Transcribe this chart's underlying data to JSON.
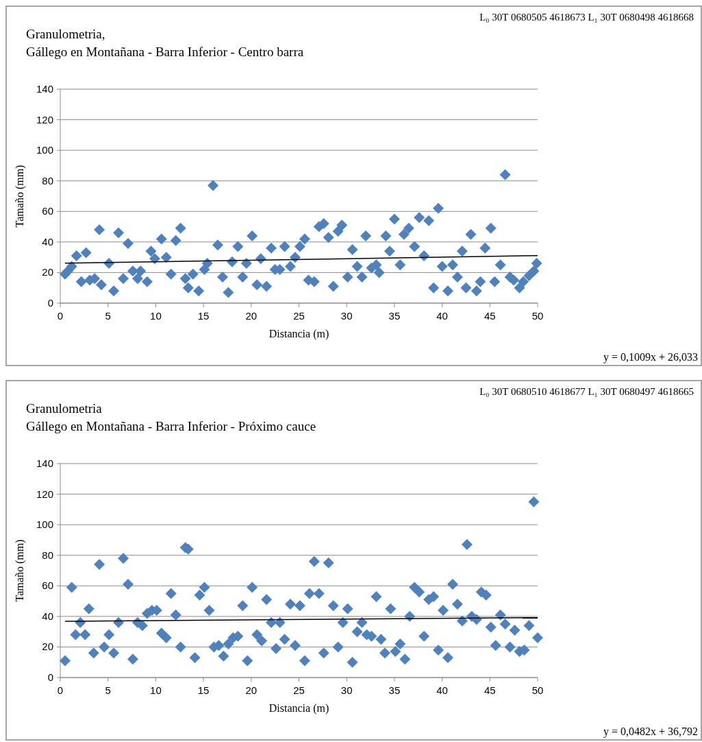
{
  "chart_data": [
    {
      "type": "scatter",
      "title": "Granulometria,",
      "subtitle": "Gállego en Montañana - Barra Inferior - Centro barra",
      "xlabel": "Distancia (m)",
      "ylabel": "Tamaño (mm)",
      "annotations": [
        "L₀ 30T 0680505  4618673   L₁ 30T 0680498  4618668",
        "y = 0,1009x + 26,033"
      ],
      "xlim": [
        0,
        50
      ],
      "xticks": [
        0,
        5,
        10,
        15,
        20,
        25,
        30,
        35,
        40,
        45,
        50
      ],
      "ylim": [
        0,
        140
      ],
      "yticks": [
        0,
        20,
        40,
        60,
        80,
        100,
        120,
        140
      ],
      "grid": "y",
      "series": [
        {
          "marker": "diamond",
          "color": "#4f81bd",
          "x": [
            0.5,
            0.8,
            1.2,
            1.7,
            2.2,
            2.7,
            3.1,
            3.6,
            4.1,
            4.3,
            5.1,
            5.6,
            6.1,
            6.6,
            7.1,
            7.6,
            8.1,
            8.4,
            9.1,
            9.5,
            9.9,
            10.6,
            11.1,
            11.6,
            12.1,
            12.6,
            13.1,
            13.4,
            13.9,
            14.5,
            15.1,
            15.4,
            16.0,
            16.5,
            17.0,
            17.6,
            18.0,
            18.6,
            19.1,
            19.5,
            20.1,
            20.6,
            21.0,
            21.6,
            22.1,
            22.5,
            23.0,
            23.5,
            24.1,
            24.6,
            25.1,
            25.6,
            26.0,
            26.6,
            27.1,
            27.6,
            28.1,
            28.6,
            29.1,
            29.5,
            30.1,
            30.6,
            31.1,
            31.6,
            32.0,
            32.6,
            33.1,
            33.4,
            34.1,
            34.5,
            35.0,
            35.6,
            36.0,
            36.5,
            37.1,
            37.6,
            38.1,
            38.6,
            39.1,
            39.6,
            40.0,
            40.6,
            41.1,
            41.6,
            42.1,
            42.5,
            43.0,
            43.6,
            44.0,
            44.5,
            45.1,
            45.5,
            46.1,
            46.6,
            47.1,
            47.5,
            48.1,
            48.5,
            49.1,
            49.6,
            49.9
          ],
          "values": [
            19,
            21,
            24,
            31,
            14,
            33,
            15,
            16,
            48,
            12,
            26,
            8,
            46,
            16,
            39,
            21,
            16,
            21,
            14,
            34,
            29,
            42,
            30,
            19,
            41,
            49,
            16,
            10,
            19,
            8,
            22,
            26,
            77,
            38,
            17,
            7,
            27,
            37,
            17,
            26,
            44,
            12,
            29,
            11,
            36,
            22,
            22,
            37,
            24,
            30,
            37,
            42,
            15,
            14,
            50,
            52,
            43,
            11,
            47,
            51,
            17,
            35,
            24,
            17,
            44,
            23,
            25,
            20,
            44,
            34,
            55,
            25,
            45,
            49,
            37,
            56,
            31,
            54,
            10,
            62,
            24,
            8,
            25,
            17,
            34,
            10,
            45,
            8,
            14,
            36,
            49,
            14,
            25,
            84,
            17,
            15,
            10,
            14,
            18,
            21,
            26
          ]
        },
        {
          "type": "line",
          "color": "#000000",
          "x": [
            0.5,
            50
          ],
          "values": [
            26.1,
            31.1
          ]
        }
      ]
    },
    {
      "type": "scatter",
      "title": "Granulometria",
      "subtitle": "Gállego en Montañana - Barra Inferior - Próximo cauce",
      "xlabel": "Distancia (m)",
      "ylabel": "Tamaño (mm)",
      "annotations": [
        "L₀ 30T 0680510  4618677   L₁ 30T 0680497  4618665",
        "y = 0,0482x + 36,792"
      ],
      "xlim": [
        0,
        50
      ],
      "xticks": [
        0,
        5,
        10,
        15,
        20,
        25,
        30,
        35,
        40,
        45,
        50
      ],
      "ylim": [
        0,
        140
      ],
      "yticks": [
        0,
        20,
        40,
        60,
        80,
        100,
        120,
        140
      ],
      "grid": "y",
      "series": [
        {
          "marker": "diamond",
          "color": "#4f81bd",
          "x": [
            0.5,
            1.2,
            1.6,
            2.1,
            2.6,
            3.0,
            3.5,
            4.1,
            4.6,
            5.1,
            5.6,
            6.1,
            6.6,
            7.1,
            7.6,
            8.1,
            8.6,
            9.1,
            9.6,
            10.1,
            10.6,
            11.1,
            11.6,
            12.1,
            12.6,
            13.1,
            13.4,
            14.1,
            14.6,
            15.1,
            15.6,
            16.1,
            16.6,
            17.1,
            17.6,
            18.1,
            18.6,
            19.1,
            19.6,
            20.1,
            20.6,
            21.1,
            21.6,
            22.1,
            22.6,
            23.0,
            23.5,
            24.1,
            24.6,
            25.1,
            25.6,
            26.1,
            26.6,
            27.1,
            27.6,
            28.1,
            28.6,
            29.1,
            29.6,
            30.1,
            30.6,
            31.1,
            31.6,
            32.1,
            32.6,
            33.1,
            33.6,
            34.0,
            34.6,
            35.1,
            35.6,
            36.1,
            36.6,
            37.1,
            37.6,
            38.1,
            38.6,
            39.1,
            39.6,
            40.1,
            40.6,
            41.1,
            41.6,
            42.1,
            42.6,
            43.1,
            43.6,
            44.1,
            44.6,
            45.1,
            45.6,
            46.1,
            46.6,
            47.1,
            47.6,
            48.1,
            48.6,
            49.1,
            49.6,
            50.0
          ],
          "values": [
            11,
            59,
            28,
            36,
            28,
            45,
            16,
            74,
            20,
            28,
            16,
            36,
            78,
            61,
            12,
            36,
            34,
            42,
            44,
            44,
            29,
            26,
            55,
            41,
            20,
            85,
            84,
            13,
            54,
            59,
            44,
            20,
            21,
            14,
            22,
            26,
            27,
            47,
            11,
            59,
            28,
            24,
            51,
            36,
            19,
            36,
            25,
            48,
            21,
            47,
            11,
            55,
            76,
            55,
            16,
            75,
            47,
            20,
            36,
            45,
            10,
            30,
            36,
            28,
            27,
            53,
            25,
            16,
            45,
            17,
            22,
            12,
            40,
            59,
            56,
            27,
            51,
            53,
            18,
            44,
            13,
            61,
            48,
            37,
            87,
            40,
            38,
            56,
            54,
            33,
            21,
            41,
            35,
            20,
            31,
            17,
            18,
            34,
            115,
            26
          ]
        },
        {
          "type": "line",
          "color": "#000000",
          "x": [
            0.5,
            50
          ],
          "values": [
            36.8,
            39.2
          ]
        }
      ]
    }
  ]
}
